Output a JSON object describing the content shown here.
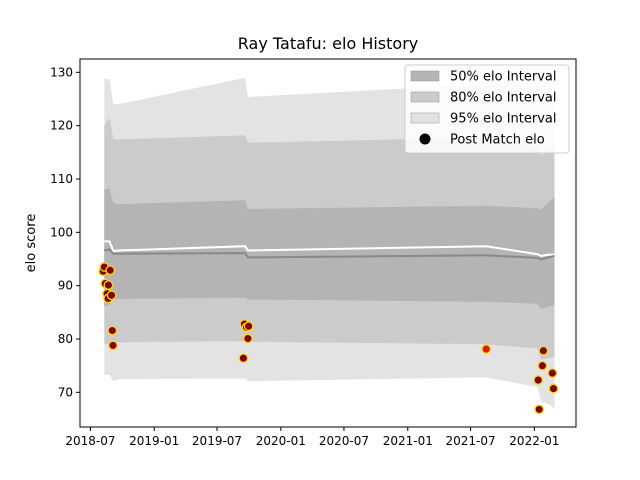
{
  "chart_data": {
    "type": "scatter",
    "title": "Ray Tatafu: elo History",
    "xlabel": "",
    "ylabel": "elo score",
    "xlim": [
      "2018-06-01",
      "2022-05-01"
    ],
    "ylim": [
      63.5,
      132.5
    ],
    "x_ticks": [
      "2018-07",
      "2019-01",
      "2019-07",
      "2020-01",
      "2020-07",
      "2021-01",
      "2021-07",
      "2022-01"
    ],
    "y_ticks": [
      70,
      80,
      90,
      100,
      110,
      120,
      130
    ],
    "legend_position": "top-right",
    "legend": [
      {
        "label": "50% elo Interval",
        "kind": "band",
        "color": "#b4b4b4"
      },
      {
        "label": "80% elo Interval",
        "kind": "band",
        "color": "#cbcbcb"
      },
      {
        "label": "95% elo Interval",
        "kind": "band",
        "color": "#e3e3e3"
      },
      {
        "label": "Post Match elo",
        "kind": "marker",
        "color": "#000000"
      }
    ],
    "bands": {
      "dates": [
        "2018-08-10",
        "2018-08-25",
        "2018-09-05",
        "2018-09-20",
        "2019-09-20",
        "2019-09-28",
        "2021-08-15",
        "2022-01-10",
        "2022-01-20",
        "2022-02-10",
        "2022-02-28"
      ],
      "mean": [
        96.6,
        96.8,
        96.0,
        96.0,
        96.1,
        95.3,
        95.7,
        95.2,
        94.9,
        95.3,
        95.6
      ],
      "p50": {
        "lower": [
          86.0,
          86.5,
          87.4,
          87.5,
          87.7,
          87.4,
          87.0,
          86.6,
          85.7,
          86.0,
          86.4
        ],
        "upper": [
          108.1,
          108.2,
          105.5,
          105.3,
          106.0,
          104.4,
          105.0,
          104.5,
          104.3,
          105.6,
          106.6
        ]
      },
      "p80": {
        "lower": [
          79.2,
          78.8,
          79.0,
          79.4,
          79.6,
          79.5,
          79.0,
          78.2,
          76.1,
          76.4,
          76.7
        ],
        "upper": [
          120.0,
          121.5,
          117.5,
          117.4,
          118.2,
          116.8,
          117.8,
          116.0,
          114.4,
          115.5,
          116.6
        ]
      },
      "p95": {
        "lower": [
          73.2,
          73.3,
          72.1,
          72.5,
          72.6,
          72.1,
          72.8,
          71.0,
          68.3,
          67.8,
          67.0
        ],
        "upper": [
          128.8,
          128.7,
          124.0,
          124.0,
          129.0,
          125.4,
          127.8,
          127.0,
          125.0,
          126.2,
          126.0
        ]
      }
    },
    "lines": [
      {
        "color": "#ffffff",
        "dates": [
          "2018-08-10",
          "2018-08-25",
          "2018-09-05",
          "2018-09-20",
          "2019-09-20",
          "2019-09-28",
          "2021-08-15",
          "2022-01-10",
          "2022-01-20",
          "2022-02-10",
          "2022-02-28"
        ],
        "values": [
          98.3,
          98.3,
          96.5,
          96.6,
          97.4,
          96.6,
          97.4,
          95.9,
          95.6,
          95.8,
          95.8
        ]
      },
      {
        "color": "#888888",
        "dates": [
          "2018-08-10",
          "2018-08-25",
          "2018-09-05",
          "2018-09-20",
          "2019-09-20",
          "2019-09-28",
          "2021-08-15",
          "2022-01-10",
          "2022-01-20",
          "2022-02-10",
          "2022-02-28"
        ],
        "values": [
          96.6,
          96.8,
          96.0,
          96.0,
          96.1,
          95.3,
          95.7,
          95.2,
          94.9,
          95.3,
          95.6
        ]
      }
    ],
    "points": [
      {
        "date": "2018-08-07",
        "elo": 92.7,
        "color": "#800000"
      },
      {
        "date": "2018-08-10",
        "elo": 93.5,
        "color": "#800000"
      },
      {
        "date": "2018-08-13",
        "elo": 90.4,
        "color": "#800000"
      },
      {
        "date": "2018-08-18",
        "elo": 88.5,
        "color": "#800000"
      },
      {
        "date": "2018-08-21",
        "elo": 87.6,
        "color": "#800000"
      },
      {
        "date": "2018-08-22",
        "elo": 90.1,
        "color": "#800000"
      },
      {
        "date": "2018-08-27",
        "elo": 92.9,
        "color": "#800000"
      },
      {
        "date": "2018-08-31",
        "elo": 88.2,
        "color": "#800000"
      },
      {
        "date": "2018-09-02",
        "elo": 81.6,
        "color": "#800000"
      },
      {
        "date": "2018-09-04",
        "elo": 78.8,
        "color": "#800000"
      },
      {
        "date": "2019-09-15",
        "elo": 76.4,
        "color": "#800000"
      },
      {
        "date": "2019-09-18",
        "elo": 82.8,
        "color": "#800000"
      },
      {
        "date": "2019-09-24",
        "elo": 82.2,
        "color": "#800000"
      },
      {
        "date": "2019-09-28",
        "elo": 80.1,
        "color": "#800000"
      },
      {
        "date": "2019-09-30",
        "elo": 82.4,
        "color": "#800000"
      },
      {
        "date": "2021-08-15",
        "elo": 78.1,
        "color": "#d91a1a"
      },
      {
        "date": "2022-01-12",
        "elo": 72.3,
        "color": "#800000"
      },
      {
        "date": "2022-01-15",
        "elo": 66.8,
        "color": "#800000"
      },
      {
        "date": "2022-01-24",
        "elo": 75.0,
        "color": "#800000"
      },
      {
        "date": "2022-01-27",
        "elo": 77.8,
        "color": "#800000"
      },
      {
        "date": "2022-02-22",
        "elo": 73.6,
        "color": "#800000"
      },
      {
        "date": "2022-02-25",
        "elo": 70.7,
        "color": "#800000"
      }
    ],
    "marker_edge_color": "#ffd700"
  }
}
